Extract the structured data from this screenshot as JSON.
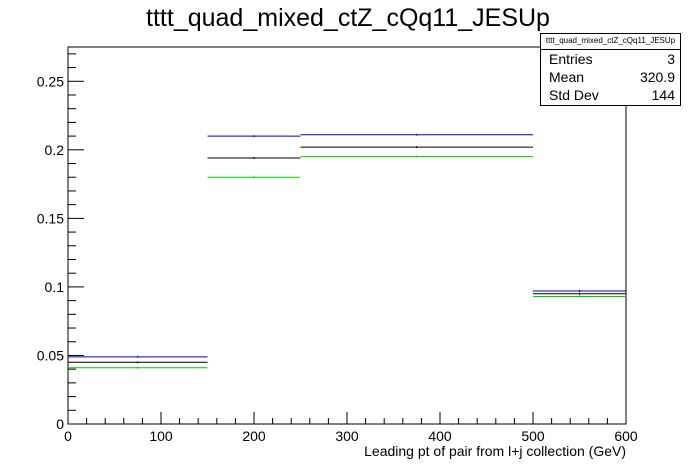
{
  "chart_data": {
    "type": "histogram-step",
    "title": "tttt_quad_mixed_ctZ_cQq11_JESUp",
    "xlabel": "Leading pt of pair from l+j collection (GeV)",
    "ylabel": "",
    "xlim": [
      0,
      600
    ],
    "ylim": [
      0,
      0.275
    ],
    "xticks": [
      0,
      100,
      200,
      300,
      400,
      500,
      600
    ],
    "yticks": [
      0,
      0.05,
      0.1,
      0.15,
      0.2,
      0.25
    ],
    "xtick_labels": [
      "0",
      "100",
      "200",
      "300",
      "400",
      "500",
      "600"
    ],
    "ytick_labels": [
      "0",
      "0.05",
      "0.1",
      "0.15",
      "0.2",
      "0.25"
    ],
    "bin_edges": [
      0,
      150,
      250,
      500,
      600
    ],
    "series": [
      {
        "color": "#0000cc",
        "values": [
          0.049,
          0.21,
          0.211,
          0.097
        ]
      },
      {
        "color": "#000000",
        "values": [
          0.045,
          0.194,
          0.202,
          0.095
        ]
      },
      {
        "color": "#00cc00",
        "values": [
          0.041,
          0.18,
          0.195,
          0.093
        ]
      }
    ],
    "stats": {
      "title": "tttt_quad_mixed_ctZ_cQq11_JESUp",
      "rows": [
        {
          "label": "Entries",
          "value": "3"
        },
        {
          "label": "Mean",
          "value": "320.9"
        },
        {
          "label": "Std Dev",
          "value": "144"
        }
      ]
    }
  }
}
